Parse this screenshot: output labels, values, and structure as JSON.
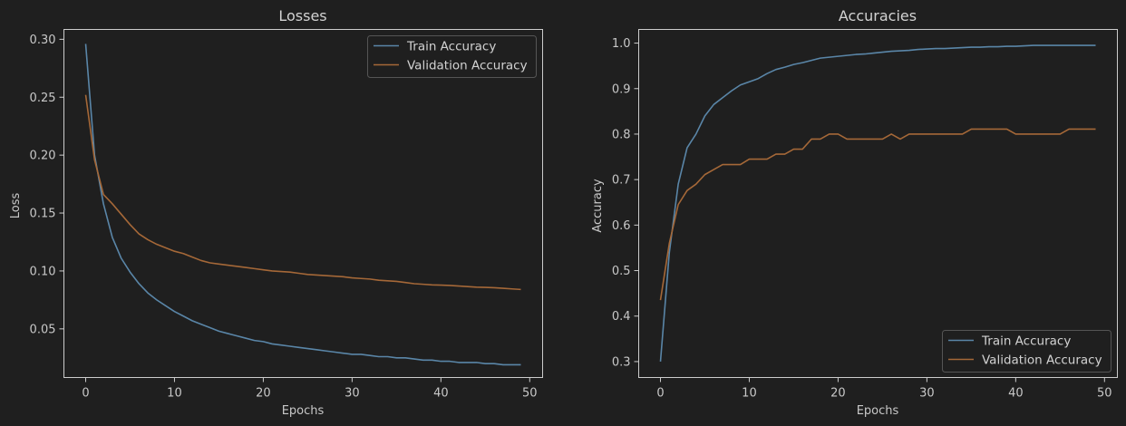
{
  "chart_data": [
    {
      "type": "line",
      "title": "Losses",
      "xlabel": "Epochs",
      "ylabel": "Loss",
      "xlim": [
        -2.45,
        51.45
      ],
      "ylim": [
        0.008,
        0.3085
      ],
      "xticks": [
        "0",
        "10",
        "20",
        "30",
        "40",
        "50"
      ],
      "yticks": [
        "0.05",
        "0.10",
        "0.15",
        "0.20",
        "0.25",
        "0.30"
      ],
      "grid": false,
      "legend_position": "top-right",
      "x": [
        0,
        1,
        2,
        3,
        4,
        5,
        6,
        7,
        8,
        9,
        10,
        11,
        12,
        13,
        14,
        15,
        16,
        17,
        18,
        19,
        20,
        21,
        22,
        23,
        24,
        25,
        26,
        27,
        28,
        29,
        30,
        31,
        32,
        33,
        34,
        35,
        36,
        37,
        38,
        39,
        40,
        41,
        42,
        43,
        44,
        45,
        46,
        47,
        48,
        49
      ],
      "series": [
        {
          "name": "Train Accuracy",
          "color": "#5a86a8",
          "values": [
            0.296,
            0.2,
            0.158,
            0.129,
            0.111,
            0.099,
            0.089,
            0.081,
            0.075,
            0.07,
            0.065,
            0.061,
            0.057,
            0.054,
            0.051,
            0.048,
            0.046,
            0.044,
            0.042,
            0.04,
            0.039,
            0.037,
            0.036,
            0.035,
            0.034,
            0.033,
            0.032,
            0.031,
            0.03,
            0.029,
            0.028,
            0.028,
            0.027,
            0.026,
            0.026,
            0.025,
            0.025,
            0.024,
            0.023,
            0.023,
            0.022,
            0.022,
            0.021,
            0.021,
            0.021,
            0.02,
            0.02,
            0.019,
            0.019,
            0.019
          ]
        },
        {
          "name": "Validation Accuracy",
          "color": "#a56838",
          "values": [
            0.252,
            0.196,
            0.166,
            0.158,
            0.149,
            0.14,
            0.132,
            0.127,
            0.123,
            0.12,
            0.117,
            0.115,
            0.112,
            0.109,
            0.107,
            0.106,
            0.105,
            0.104,
            0.103,
            0.102,
            0.101,
            0.1,
            0.0995,
            0.099,
            0.098,
            0.097,
            0.0965,
            0.096,
            0.0955,
            0.095,
            0.094,
            0.0935,
            0.093,
            0.092,
            0.0915,
            0.091,
            0.09,
            0.089,
            0.0885,
            0.088,
            0.0878,
            0.0875,
            0.087,
            0.0865,
            0.086,
            0.0858,
            0.0855,
            0.085,
            0.0845,
            0.084
          ]
        }
      ]
    },
    {
      "type": "line",
      "title": "Accuracies",
      "xlabel": "Epochs",
      "ylabel": "Accuracy",
      "xlim": [
        -2.45,
        51.45
      ],
      "ylim": [
        0.265,
        1.03
      ],
      "xticks": [
        "0",
        "10",
        "20",
        "30",
        "40",
        "50"
      ],
      "yticks": [
        "0.3",
        "0.4",
        "0.5",
        "0.6",
        "0.7",
        "0.8",
        "0.9",
        "1.0"
      ],
      "grid": false,
      "legend_position": "bottom-right",
      "x": [
        0,
        1,
        2,
        3,
        4,
        5,
        6,
        7,
        8,
        9,
        10,
        11,
        12,
        13,
        14,
        15,
        16,
        17,
        18,
        19,
        20,
        21,
        22,
        23,
        24,
        25,
        26,
        27,
        28,
        29,
        30,
        31,
        32,
        33,
        34,
        35,
        36,
        37,
        38,
        39,
        40,
        41,
        42,
        43,
        44,
        45,
        46,
        47,
        48,
        49
      ],
      "series": [
        {
          "name": "Train Accuracy",
          "color": "#5a86a8",
          "values": [
            0.3,
            0.54,
            0.69,
            0.77,
            0.8,
            0.84,
            0.865,
            0.88,
            0.895,
            0.908,
            0.915,
            0.922,
            0.933,
            0.942,
            0.947,
            0.953,
            0.957,
            0.962,
            0.967,
            0.969,
            0.971,
            0.973,
            0.975,
            0.976,
            0.978,
            0.98,
            0.982,
            0.983,
            0.984,
            0.986,
            0.987,
            0.988,
            0.988,
            0.989,
            0.99,
            0.991,
            0.991,
            0.992,
            0.992,
            0.993,
            0.993,
            0.994,
            0.995,
            0.995,
            0.995,
            0.995,
            0.995,
            0.995,
            0.995,
            0.995
          ]
        },
        {
          "name": "Validation Accuracy",
          "color": "#a56838",
          "values": [
            0.435,
            0.56,
            0.645,
            0.676,
            0.69,
            0.711,
            0.722,
            0.733,
            0.733,
            0.733,
            0.745,
            0.745,
            0.745,
            0.756,
            0.756,
            0.767,
            0.767,
            0.789,
            0.789,
            0.8,
            0.8,
            0.789,
            0.789,
            0.789,
            0.789,
            0.789,
            0.8,
            0.789,
            0.8,
            0.8,
            0.8,
            0.8,
            0.8,
            0.8,
            0.8,
            0.811,
            0.811,
            0.811,
            0.811,
            0.811,
            0.8,
            0.8,
            0.8,
            0.8,
            0.8,
            0.8,
            0.811,
            0.811,
            0.811,
            0.811
          ]
        }
      ]
    }
  ],
  "colors": {
    "background": "#1f1f1f",
    "axes_edge": "#cccccc",
    "text": "#c8c8c8"
  }
}
